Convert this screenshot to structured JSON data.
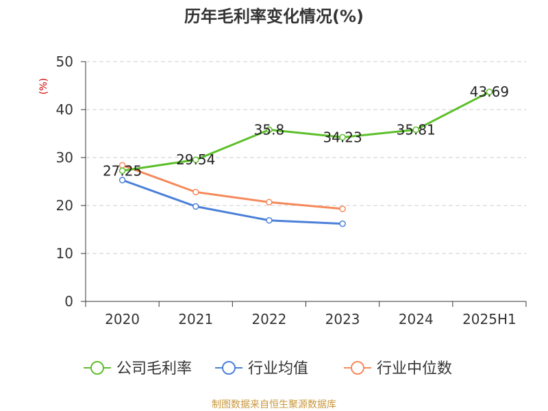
{
  "chart_data": {
    "type": "line",
    "title": "历年毛利率变化情况(%)",
    "ylabel": "(%)",
    "categories": [
      "2020",
      "2021",
      "2022",
      "2023",
      "2024",
      "2025H1"
    ],
    "ylim": [
      0,
      50
    ],
    "yticks": [
      "0",
      "10",
      "20",
      "30",
      "40",
      "50"
    ],
    "grid": true,
    "legend_position": "bottom",
    "series": [
      {
        "name": "公司毛利率",
        "color": "#5cbf2a",
        "values": [
          27.25,
          29.54,
          35.8,
          34.23,
          35.81,
          43.69
        ],
        "labels": [
          "27.25",
          "29.54",
          "35.8",
          "34.23",
          "35.81",
          "43.69"
        ]
      },
      {
        "name": "行业均值",
        "color": "#4a7fd8",
        "values": [
          25.3,
          19.8,
          16.9,
          16.2,
          null,
          null
        ]
      },
      {
        "name": "行业中位数",
        "color": "#f5895a",
        "values": [
          28.4,
          22.8,
          20.7,
          19.3,
          null,
          null
        ]
      }
    ]
  },
  "source_text": "制图数据来自恒生聚源数据库"
}
